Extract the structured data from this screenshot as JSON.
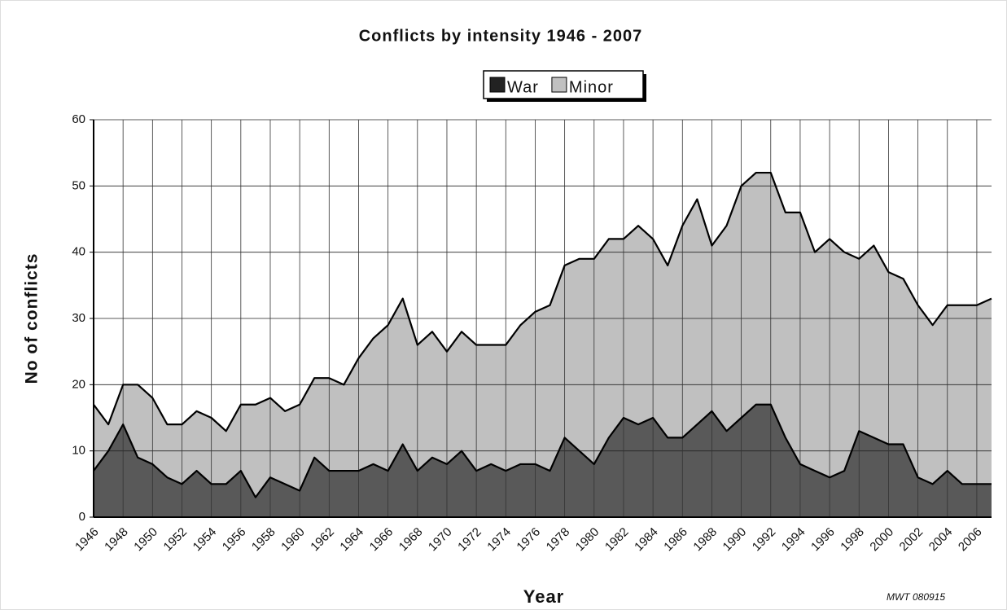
{
  "chart_data": {
    "type": "stacked_area",
    "title": "Conflicts by intensity 1946 - 2007",
    "x_label": "Year",
    "y_label": "No of conflicts",
    "annotation": "MWT 080915",
    "categories": [
      "1946",
      null,
      "1948",
      null,
      "1950",
      null,
      "1952",
      null,
      "1954",
      null,
      "1956",
      null,
      "1958",
      null,
      "1960",
      null,
      "1962",
      null,
      "1964",
      null,
      "1966",
      null,
      "1968",
      null,
      "1970",
      null,
      "1972",
      null,
      "1974",
      null,
      "1976",
      null,
      "1978",
      null,
      "1980",
      null,
      "1982",
      null,
      "1984",
      null,
      "1986",
      null,
      "1988",
      null,
      "1990",
      null,
      "1992",
      null,
      "1994",
      null,
      "1996",
      null,
      "1998",
      null,
      "2000",
      null,
      "2002",
      null,
      "2004",
      null,
      "2006",
      null
    ],
    "series": [
      {
        "name": "War",
        "color": "#595959",
        "values": [
          7,
          10,
          14,
          9,
          8,
          6,
          5,
          7,
          5,
          5,
          7,
          3,
          6,
          5,
          4,
          9,
          7,
          7,
          7,
          8,
          7,
          11,
          7,
          9,
          8,
          10,
          7,
          8,
          7,
          8,
          8,
          7,
          12,
          10,
          8,
          12,
          15,
          14,
          15,
          12,
          12,
          14,
          16,
          13,
          15,
          17,
          17,
          12,
          8,
          7,
          6,
          7,
          13,
          12,
          11,
          11,
          6,
          5,
          7,
          5,
          5,
          5
        ]
      },
      {
        "name": "Minor",
        "color": "#c0c0c0",
        "values": [
          10,
          4,
          6,
          11,
          10,
          8,
          9,
          9,
          10,
          8,
          10,
          14,
          12,
          11,
          13,
          12,
          14,
          13,
          17,
          19,
          22,
          22,
          19,
          19,
          17,
          18,
          19,
          18,
          19,
          21,
          23,
          25,
          26,
          29,
          31,
          30,
          27,
          30,
          27,
          26,
          32,
          34,
          25,
          31,
          35,
          35,
          35,
          34,
          38,
          33,
          36,
          33,
          26,
          29,
          26,
          25,
          26,
          24,
          25,
          27,
          27,
          28
        ]
      }
    ],
    "ylim": [
      0,
      60
    ],
    "yticks": [
      0,
      10,
      20,
      30,
      40,
      50,
      60
    ],
    "grid": true,
    "legend": "top"
  }
}
